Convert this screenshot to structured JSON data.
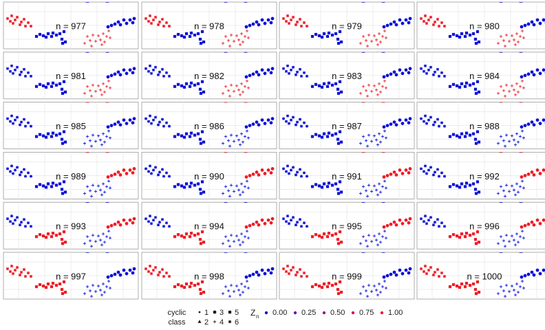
{
  "chart_data": {
    "type": "scatter",
    "title": "",
    "panels": [
      {
        "label": "n = 977",
        "state": [
          1,
          0,
          0,
          1,
          0,
          1
        ]
      },
      {
        "label": "n = 978",
        "state": [
          1,
          0,
          0,
          1,
          0,
          1
        ]
      },
      {
        "label": "n = 979",
        "state": [
          1,
          0,
          0,
          1,
          0,
          1
        ]
      },
      {
        "label": "n = 980",
        "state": [
          1,
          0,
          0,
          1,
          0,
          1
        ]
      },
      {
        "label": "n = 981",
        "state": [
          1,
          0,
          0,
          1,
          0,
          0
        ]
      },
      {
        "label": "n = 982",
        "state": [
          1,
          0,
          0,
          1,
          0,
          0
        ]
      },
      {
        "label": "n = 983",
        "state": [
          1,
          0,
          0,
          1,
          0,
          0
        ]
      },
      {
        "label": "n = 984",
        "state": [
          1,
          0,
          0,
          1,
          0,
          0
        ]
      },
      {
        "label": "n = 985",
        "state": [
          0,
          1,
          0,
          0,
          0,
          0
        ]
      },
      {
        "label": "n = 986",
        "state": [
          0,
          1,
          0,
          0,
          0,
          0
        ]
      },
      {
        "label": "n = 987",
        "state": [
          0,
          1,
          0,
          0,
          0,
          0
        ]
      },
      {
        "label": "n = 988",
        "state": [
          0,
          1,
          0,
          0,
          0,
          0
        ]
      },
      {
        "label": "n = 989",
        "state": [
          0,
          1,
          1,
          0,
          0,
          0
        ]
      },
      {
        "label": "n = 990",
        "state": [
          0,
          1,
          1,
          0,
          0,
          0
        ]
      },
      {
        "label": "n = 991",
        "state": [
          0,
          1,
          1,
          0,
          0,
          0
        ]
      },
      {
        "label": "n = 992",
        "state": [
          0,
          1,
          1,
          0,
          0,
          0
        ]
      },
      {
        "label": "n = 993",
        "state": [
          0,
          0,
          1,
          0,
          1,
          0
        ]
      },
      {
        "label": "n = 994",
        "state": [
          0,
          0,
          1,
          0,
          1,
          0
        ]
      },
      {
        "label": "n = 995",
        "state": [
          0,
          0,
          1,
          0,
          1,
          0
        ]
      },
      {
        "label": "n = 996",
        "state": [
          0,
          0,
          1,
          0,
          1,
          0
        ]
      },
      {
        "label": "n = 997",
        "state": [
          0,
          0,
          0,
          0,
          1,
          1
        ]
      },
      {
        "label": "n = 998",
        "state": [
          0,
          0,
          0,
          0,
          1,
          1
        ]
      },
      {
        "label": "n = 999",
        "state": [
          0,
          0,
          0,
          0,
          1,
          1
        ]
      },
      {
        "label": "n = 1000",
        "state": [
          0,
          0,
          0,
          0,
          1,
          1
        ]
      }
    ],
    "legend": {
      "shape_title_line1": "cyclic",
      "shape_title_line2": "class",
      "classes": [
        "1",
        "2",
        "3",
        "4",
        "5",
        "6"
      ],
      "color_title": "Z",
      "color_title_sub": "n",
      "color_values": [
        "0.00",
        "0.25",
        "0.50",
        "0.75",
        "1.00"
      ],
      "color_hex": [
        "#0a10d6",
        "#6a0eb0",
        "#a3127e",
        "#d4134a",
        "#ee1c25"
      ]
    }
  }
}
